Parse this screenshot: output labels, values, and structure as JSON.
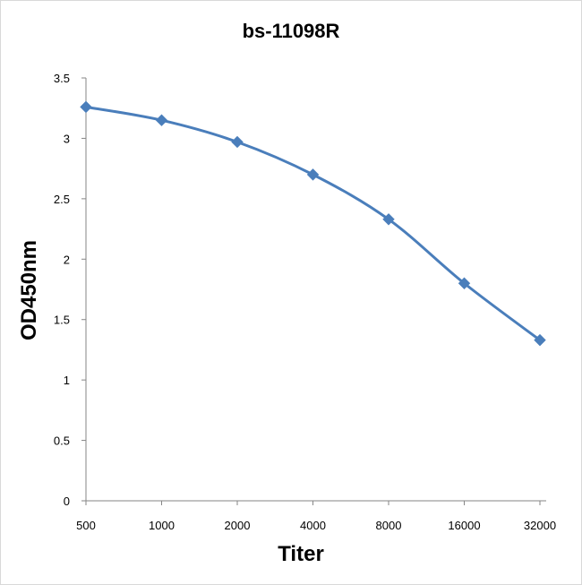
{
  "chart_data": {
    "type": "line",
    "title": "bs-11098R",
    "xlabel": "Titer",
    "ylabel": "OD450nm",
    "categories": [
      "500",
      "1000",
      "2000",
      "4000",
      "8000",
      "16000",
      "32000"
    ],
    "series": [
      {
        "values": [
          3.26,
          3.15,
          2.97,
          2.7,
          2.33,
          1.8,
          1.33
        ]
      }
    ],
    "ylim": [
      0,
      3.5
    ],
    "yticks": [
      "0",
      "0.5",
      "1",
      "1.5",
      "2",
      "2.5",
      "3",
      "3.5"
    ],
    "grid": false,
    "legend": "none",
    "colors": {
      "series": "#4a7ebb",
      "axis": "#868686"
    }
  }
}
